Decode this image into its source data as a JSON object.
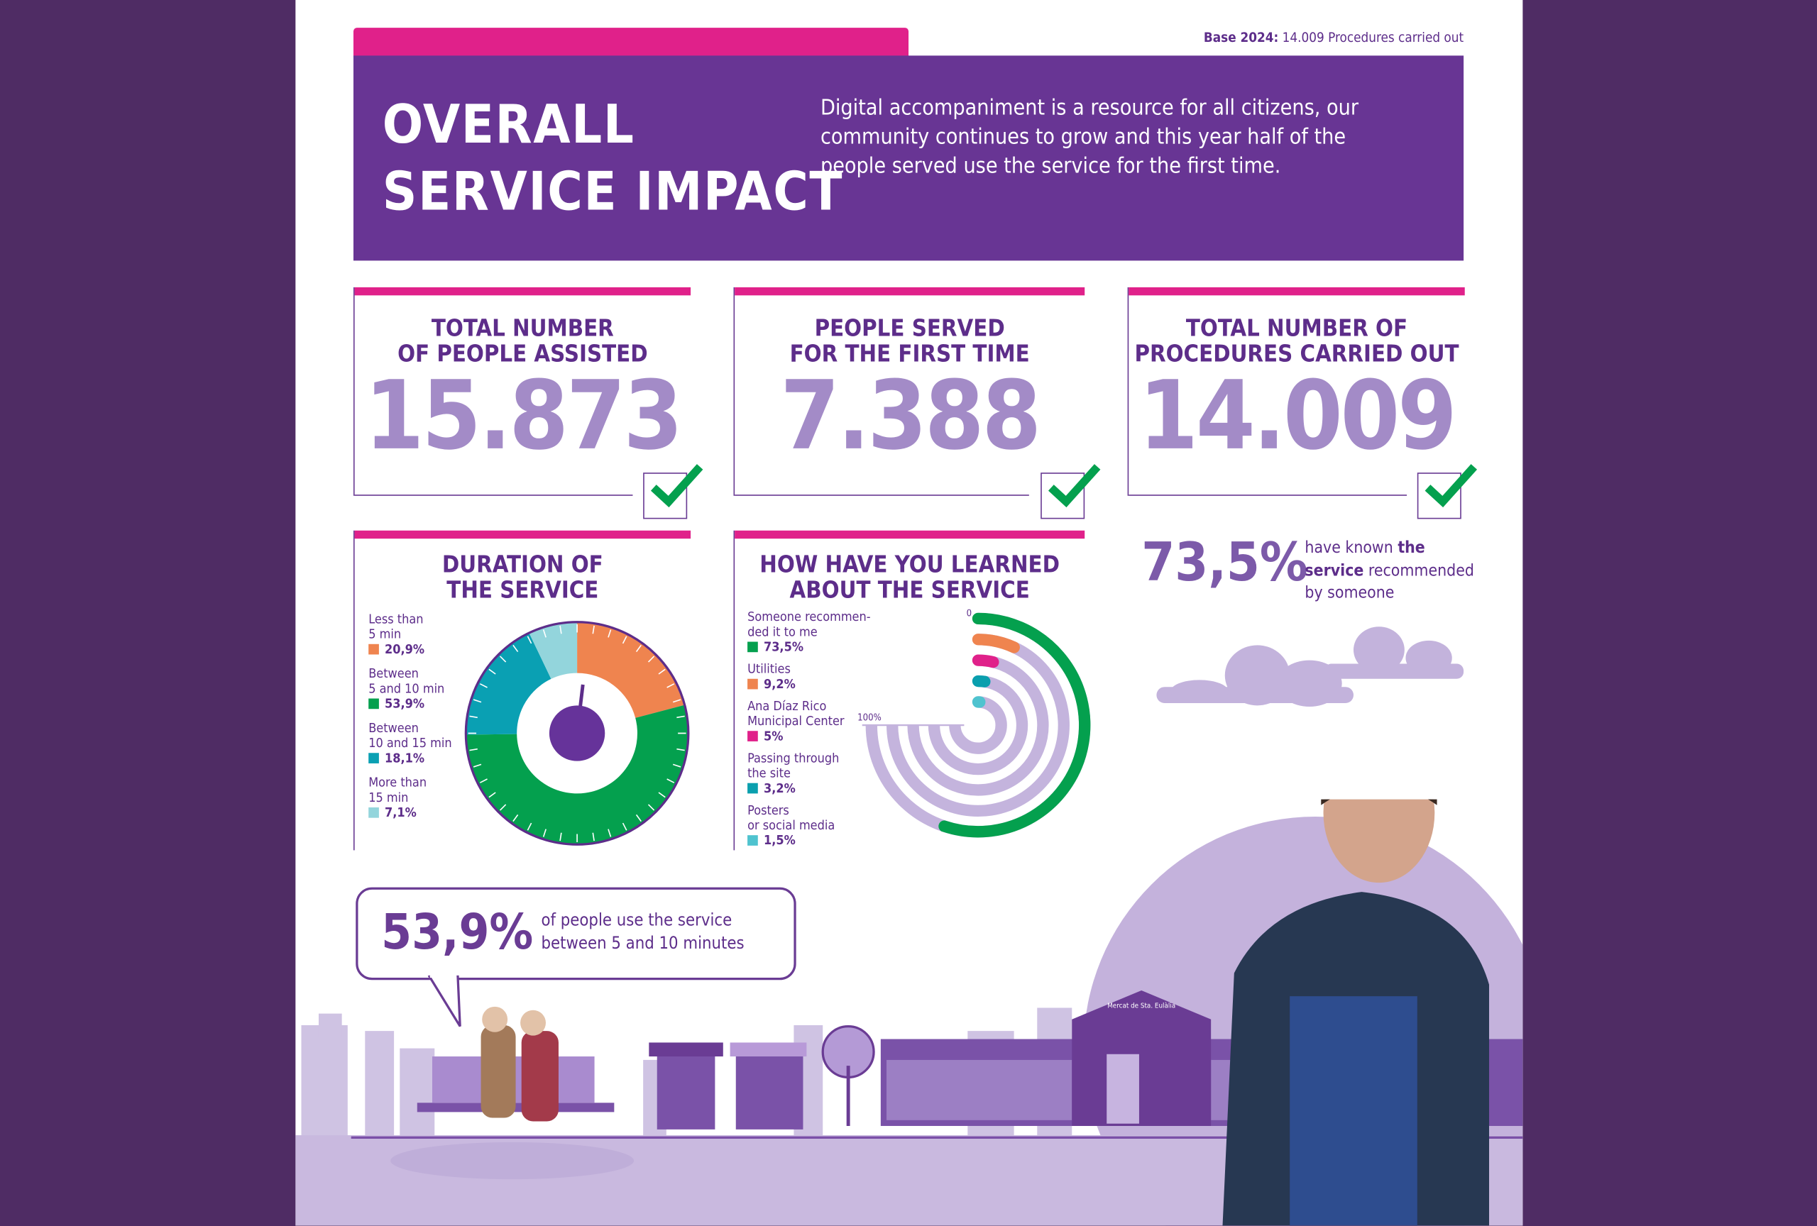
{
  "header": {
    "base_label": "Base 2024:",
    "base_value": "14.009 Procedures carried out",
    "title_line1": "OVERALL",
    "title_line2": "SERVICE IMPACT",
    "description": "Digital accompaniment is a resource for all citizens, our community continues to grow and this year half of the people served use the service for the first time."
  },
  "kpis": [
    {
      "title1": "TOTAL NUMBER",
      "title2": "OF PEOPLE ASSISTED",
      "value": "15.873"
    },
    {
      "title1": "PEOPLE SERVED",
      "title2": "FOR THE FIRST TIME",
      "value": "7.388"
    },
    {
      "title1": "TOTAL NUMBER OF",
      "title2": "PROCEDURES CARRIED OUT",
      "value": "14.009"
    }
  ],
  "recommended": {
    "value": "73,5%",
    "text1": "have known ",
    "bold1": "the",
    "bold2": "service",
    "text2": " recommended",
    "text3": "by someone"
  },
  "bubble": {
    "value": "53,9%",
    "line1": "of people use the service",
    "line2": "between 5 and 10 minutes"
  },
  "scene": {
    "market_sign": "Mercat de Sta. Eulàlia"
  },
  "chart_data": [
    {
      "type": "pie",
      "title1": "DURATION OF",
      "title2": "THE SERVICE",
      "categories": [
        {
          "l1": "Less than",
          "l2": "5 min",
          "label": "20,9%",
          "value": 20.9,
          "color": "#ef844f"
        },
        {
          "l1": "Between",
          "l2": "5 and 10 min",
          "label": "53,9%",
          "value": 53.9,
          "color": "#04a04e"
        },
        {
          "l1": "Between",
          "l2": "10 and 15 min",
          "label": "18,1%",
          "value": 18.1,
          "color": "#0aa0b3"
        },
        {
          "l1": "More than",
          "l2": "15 min",
          "label": "7,1%",
          "value": 7.1,
          "color": "#93d5dc"
        }
      ]
    },
    {
      "type": "radial-bar",
      "title1": "HOW HAVE YOU LEARNED",
      "title2": "ABOUT THE SERVICE",
      "axis_min_label": "0",
      "axis_max_label": "100%",
      "range": [
        0,
        100
      ],
      "categories": [
        {
          "l1": "Someone recommen-",
          "l2": "ded it to me",
          "label": "73,5%",
          "value": 73.5,
          "color": "#04a04e"
        },
        {
          "l1": "Utilities",
          "l2": "",
          "label": "9,2%",
          "value": 9.2,
          "color": "#ef844f"
        },
        {
          "l1": "Ana Díaz Rico",
          "l2": "Municipal Center",
          "label": "5%",
          "value": 5,
          "color": "#e0218a"
        },
        {
          "l1": "Passing through",
          "l2": "the site",
          "label": "3,2%",
          "value": 3.2,
          "color": "#0a9fae"
        },
        {
          "l1": "Posters",
          "l2": "or social media",
          "label": "1,5%",
          "value": 1.5,
          "color": "#4fc3cf"
        }
      ]
    }
  ]
}
